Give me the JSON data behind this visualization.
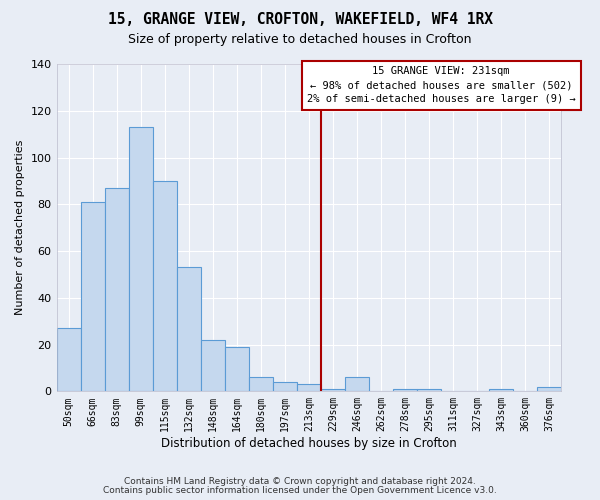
{
  "title": "15, GRANGE VIEW, CROFTON, WAKEFIELD, WF4 1RX",
  "subtitle": "Size of property relative to detached houses in Crofton",
  "xlabel": "Distribution of detached houses by size in Crofton",
  "ylabel": "Number of detached properties",
  "footnote1": "Contains HM Land Registry data © Crown copyright and database right 2024.",
  "footnote2": "Contains public sector information licensed under the Open Government Licence v3.0.",
  "categories": [
    "50sqm",
    "66sqm",
    "83sqm",
    "99sqm",
    "115sqm",
    "132sqm",
    "148sqm",
    "164sqm",
    "180sqm",
    "197sqm",
    "213sqm",
    "229sqm",
    "246sqm",
    "262sqm",
    "278sqm",
    "295sqm",
    "311sqm",
    "327sqm",
    "343sqm",
    "360sqm",
    "376sqm"
  ],
  "values": [
    27,
    81,
    87,
    113,
    90,
    53,
    22,
    19,
    6,
    4,
    3,
    1,
    6,
    0,
    1,
    1,
    0,
    0,
    1,
    0,
    2
  ],
  "bar_color": "#c5d8ee",
  "bar_edge_color": "#5b9bd5",
  "bg_color": "#e8edf5",
  "grid_color": "#ffffff",
  "vline_x": 10.5,
  "vline_color": "#aa0000",
  "annotation_text": "15 GRANGE VIEW: 231sqm\n← 98% of detached houses are smaller (502)\n2% of semi-detached houses are larger (9) →",
  "annotation_box_color": "#ffffff",
  "annotation_box_edge": "#aa0000",
  "ylim": [
    0,
    140
  ],
  "yticks": [
    0,
    20,
    40,
    60,
    80,
    100,
    120,
    140
  ]
}
